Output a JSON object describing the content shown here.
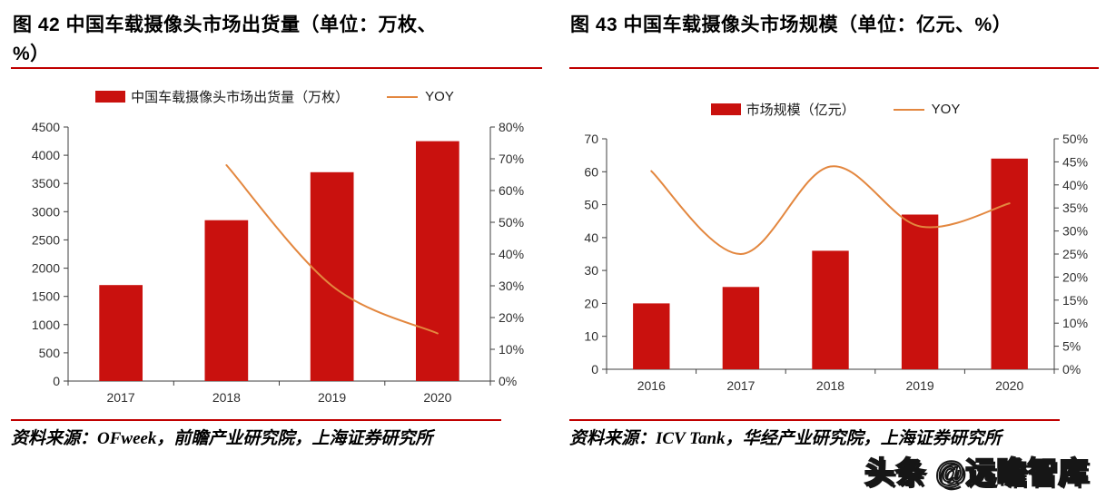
{
  "page": {
    "background": "#ffffff",
    "watermark": "头条 @远瞻智库"
  },
  "colors": {
    "bar": "#c9110e",
    "line": "#e3873f",
    "rule": "#c00000",
    "axis": "#3f3f3f"
  },
  "chart_data": [
    {
      "type": "bar+line",
      "figure_label": "图 42",
      "title": "图 42 中国车载摄像头市场出货量（单位：万枚、%）",
      "categories": [
        "2017",
        "2018",
        "2019",
        "2020"
      ],
      "series": [
        {
          "name": "中国车载摄像头市场出货量（万枚）",
          "type": "bar",
          "axis": "left",
          "values": [
            1700,
            2850,
            3700,
            4250
          ]
        },
        {
          "name": "YOY",
          "type": "line",
          "axis": "right",
          "values": [
            null,
            68,
            30,
            15
          ]
        }
      ],
      "left_axis": {
        "min": 0,
        "max": 4500,
        "step": 500,
        "format": "number"
      },
      "right_axis": {
        "min": 0,
        "max": 80,
        "step": 10,
        "format": "percent"
      },
      "legend_position": "top",
      "grid": false,
      "source": "资料来源：OFweek，前瞻产业研究院，上海证券研究所"
    },
    {
      "type": "bar+line",
      "figure_label": "图 43",
      "title": "图 43 中国车载摄像头市场规模（单位：亿元、%）",
      "categories": [
        "2016",
        "2017",
        "2018",
        "2019",
        "2020"
      ],
      "series": [
        {
          "name": "市场规模（亿元）",
          "type": "bar",
          "axis": "left",
          "values": [
            20,
            25,
            36,
            47,
            64
          ]
        },
        {
          "name": "YOY",
          "type": "line",
          "axis": "right",
          "values": [
            43,
            25,
            44,
            31,
            36
          ]
        }
      ],
      "left_axis": {
        "min": 0,
        "max": 70,
        "step": 10,
        "format": "number"
      },
      "right_axis": {
        "min": 0,
        "max": 50,
        "step": 5,
        "format": "percent"
      },
      "legend_position": "top",
      "grid": false,
      "source": "资料来源：ICV Tank，华经产业研究院，上海证券研究所"
    }
  ]
}
